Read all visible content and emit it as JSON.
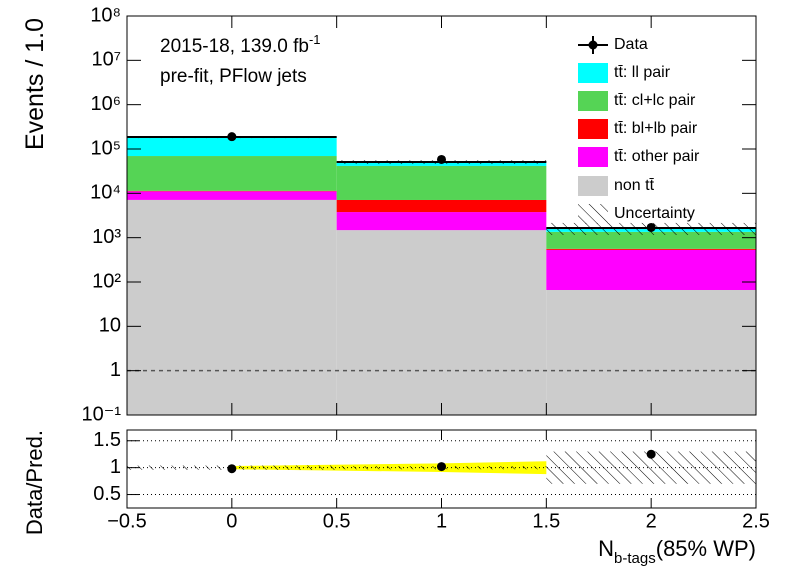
{
  "chart_data": [
    {
      "type": "stacked-histogram",
      "annotations": [
        {
          "text": "2015-18, 139.0 fb",
          "sup": "-1"
        },
        {
          "text": "pre-fit, PFlow jets"
        }
      ],
      "ylabel": "Events / 1.0",
      "bins": [
        -0.5,
        0.5,
        1.5,
        2.5
      ],
      "xlim": [
        -0.5,
        2.5
      ],
      "xticks": [
        {
          "value": -0.5,
          "label": "−0.5"
        },
        0,
        0.5,
        1,
        1.5,
        2,
        2.5
      ],
      "ylim": [
        0.1,
        100000000
      ],
      "log_y": true,
      "yticks": [
        {
          "value": 0.1,
          "label": "10⁻¹"
        },
        1,
        10,
        {
          "value": 100,
          "label": "10²"
        },
        {
          "value": 1000,
          "label": "10³"
        },
        {
          "value": 10000,
          "label": "10⁴"
        },
        {
          "value": 100000,
          "label": "10⁵"
        },
        {
          "value": 1000000,
          "label": "10⁶"
        },
        {
          "value": 10000000,
          "label": "10⁷"
        },
        {
          "value": 100000000,
          "label": "10⁸"
        }
      ],
      "reference_line": 1,
      "legend": "top-right",
      "series": [
        {
          "name": "non tt̄",
          "color": "#cccccc",
          "values": [
            7100,
            1480,
            66
          ]
        },
        {
          "name": "tt̄: other pair",
          "color": "#ff00ff",
          "values": [
            4000,
            2300,
            464
          ]
        },
        {
          "name": "tt̄: bl+lb pair",
          "color": "#ff0000",
          "values": [
            300,
            3300,
            30
          ]
        },
        {
          "name": "tt̄: cl+lc pair",
          "color": "#55d455",
          "values": [
            58000,
            34400,
            790
          ]
        },
        {
          "name": "tt̄: ll pair",
          "color": "#00ffff",
          "values": [
            117000,
            9500,
            300
          ]
        }
      ],
      "data": {
        "name": "Data",
        "color": "#000000",
        "x": [
          0,
          1,
          2
        ],
        "values": [
          190000,
          58000,
          1700
        ]
      },
      "uncertainty": {
        "name": "Uncertainty",
        "values": [
          10000,
          5000,
          500
        ]
      }
    },
    {
      "type": "ratio",
      "ylabel": "Data/Pred.",
      "xlabel": {
        "main": "N",
        "sub": "b-tags",
        "tail": "(85% WP)"
      },
      "xlim": [
        -0.5,
        2.5
      ],
      "xticks": [
        {
          "value": -0.5,
          "label": "−0.5"
        },
        0,
        0.5,
        1,
        1.5,
        2,
        2.5
      ],
      "ylim": [
        0.25,
        1.7
      ],
      "yticks": [
        0.5,
        1,
        1.5
      ],
      "grid": true,
      "bins": [
        -0.5,
        0.5,
        1.5,
        2.5
      ],
      "x": [
        0,
        1,
        2
      ],
      "values": [
        0.98,
        1.02,
        1.25
      ],
      "uncertainty": [
        0.04,
        0.03,
        0.3
      ],
      "band": {
        "color": "#ffff00",
        "x": [
          0,
          1,
          1.5
        ],
        "values": [
          0.03,
          0.08,
          0.12
        ]
      }
    }
  ]
}
